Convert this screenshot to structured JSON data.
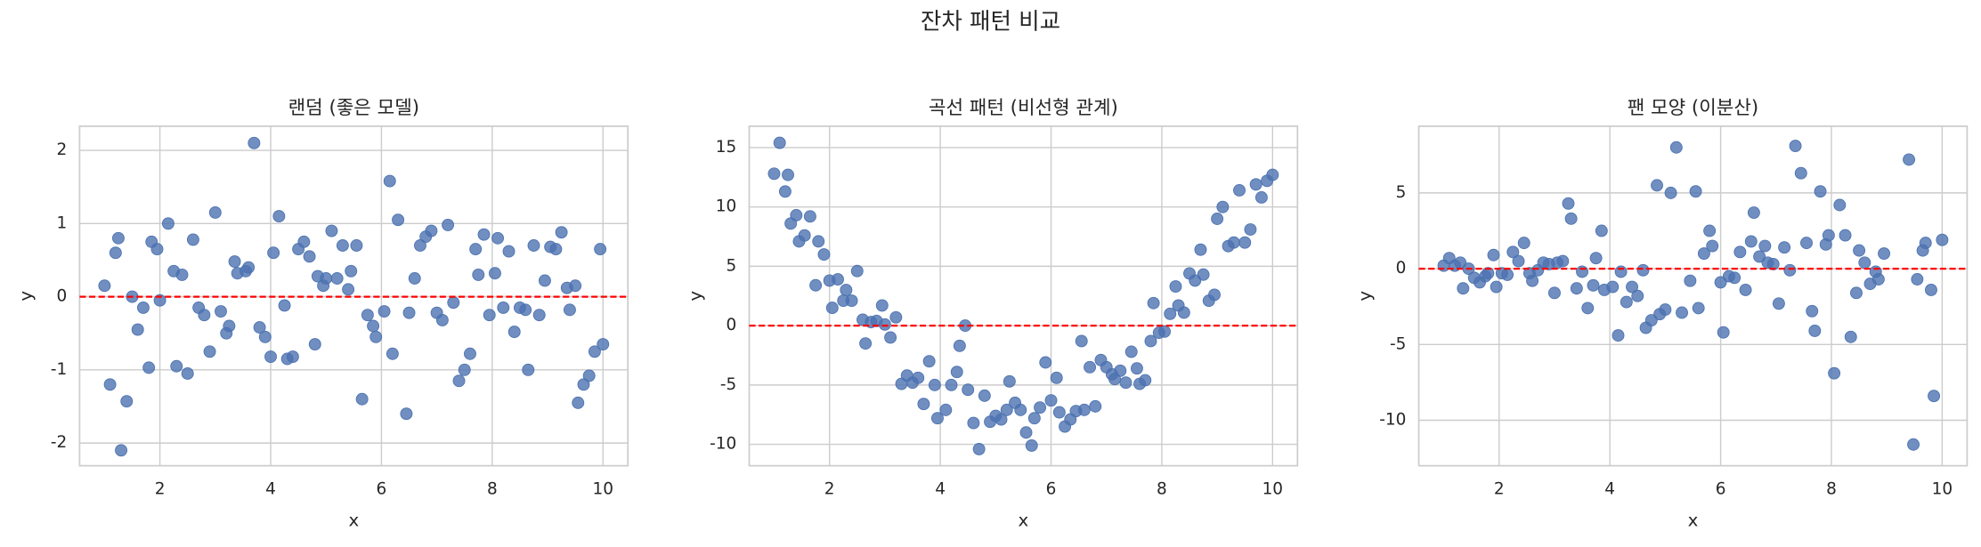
{
  "title": "잔차 패턴 비교",
  "chart_data": [
    {
      "type": "scatter",
      "title": "랜덤 (좋은 모델)",
      "xlabel": "x",
      "ylabel": "y",
      "color": "#4c72b0",
      "hline": 0,
      "hline_color": "red",
      "grid": true,
      "xlim": [
        0.55,
        10.45
      ],
      "ylim": [
        -2.31,
        2.33
      ],
      "xticks": [
        2,
        4,
        6,
        8,
        10
      ],
      "yticks": [
        -2,
        -1,
        0,
        1,
        2
      ],
      "x": [
        1.0,
        1.1,
        1.2,
        1.25,
        1.3,
        1.4,
        1.5,
        1.6,
        1.7,
        1.8,
        1.85,
        1.95,
        2.0,
        2.15,
        2.25,
        2.3,
        2.4,
        2.5,
        2.6,
        2.7,
        2.8,
        2.9,
        3.0,
        3.1,
        3.2,
        3.25,
        3.35,
        3.4,
        3.55,
        3.6,
        3.7,
        3.8,
        3.9,
        4.0,
        4.05,
        4.15,
        4.25,
        4.3,
        4.4,
        4.5,
        4.6,
        4.7,
        4.8,
        4.85,
        4.95,
        5.0,
        5.1,
        5.2,
        5.3,
        5.4,
        5.45,
        5.55,
        5.65,
        5.75,
        5.85,
        5.9,
        6.05,
        6.15,
        6.2,
        6.3,
        6.45,
        6.5,
        6.6,
        6.7,
        6.8,
        6.9,
        7.0,
        7.1,
        7.2,
        7.3,
        7.4,
        7.5,
        7.6,
        7.7,
        7.75,
        7.85,
        7.95,
        8.05,
        8.1,
        8.2,
        8.3,
        8.4,
        8.5,
        8.6,
        8.65,
        8.75,
        8.85,
        8.95,
        9.05,
        9.15,
        9.25,
        9.35,
        9.4,
        9.5,
        9.55,
        9.65,
        9.75,
        9.85,
        9.95,
        10.0
      ],
      "y": [
        0.15,
        -1.2,
        0.6,
        0.8,
        -2.1,
        -1.43,
        0,
        -0.45,
        -0.15,
        -0.97,
        0.75,
        0.65,
        -0.05,
        1.0,
        0.35,
        -0.95,
        0.3,
        -1.05,
        0.78,
        -0.15,
        -0.25,
        -0.75,
        1.15,
        -0.2,
        -0.5,
        -0.4,
        0.48,
        0.32,
        0.35,
        0.4,
        2.1,
        -0.42,
        -0.55,
        -0.82,
        0.6,
        1.1,
        -0.12,
        -0.85,
        -0.82,
        0.65,
        0.75,
        0.55,
        -0.65,
        0.28,
        0.15,
        0.25,
        0.9,
        0.25,
        0.7,
        0.1,
        0.35,
        0.7,
        -1.4,
        -0.25,
        -0.4,
        -0.55,
        -0.2,
        1.58,
        -0.78,
        1.05,
        -1.6,
        -0.22,
        0.25,
        0.7,
        0.82,
        0.9,
        -0.22,
        -0.32,
        0.98,
        -0.08,
        -1.15,
        -1.0,
        -0.78,
        0.65,
        0.3,
        0.85,
        -0.25,
        0.32,
        0.8,
        -0.15,
        0.62,
        -0.48,
        -0.15,
        -0.18,
        -1.0,
        0.7,
        -0.25,
        0.22,
        0.68,
        0.65,
        0.88,
        0.12,
        -0.18,
        0.15,
        -1.45,
        -1.2,
        -1.08,
        -0.75,
        0.65,
        -0.65
      ]
    },
    {
      "type": "scatter",
      "title": "곡선 패턴 (비선형 관계)",
      "xlabel": "x",
      "ylabel": "y",
      "color": "#4c72b0",
      "hline": 0,
      "hline_color": "red",
      "grid": true,
      "xlim": [
        0.55,
        10.45
      ],
      "ylim": [
        -11.8,
        16.8
      ],
      "xticks": [
        2,
        4,
        6,
        8,
        10
      ],
      "yticks": [
        -10,
        -5,
        0,
        5,
        10,
        15
      ],
      "x": [
        1.0,
        1.1,
        1.2,
        1.25,
        1.3,
        1.4,
        1.45,
        1.55,
        1.65,
        1.75,
        1.8,
        1.9,
        2.0,
        2.05,
        2.15,
        2.25,
        2.3,
        2.4,
        2.5,
        2.6,
        2.65,
        2.75,
        2.85,
        2.95,
        3.0,
        3.1,
        3.2,
        3.3,
        3.4,
        3.5,
        3.6,
        3.7,
        3.8,
        3.9,
        3.95,
        4.1,
        4.2,
        4.3,
        4.35,
        4.45,
        4.5,
        4.6,
        4.7,
        4.8,
        4.9,
        5.0,
        5.1,
        5.2,
        5.25,
        5.35,
        5.45,
        5.55,
        5.65,
        5.7,
        5.8,
        5.9,
        6.0,
        6.1,
        6.15,
        6.25,
        6.35,
        6.45,
        6.55,
        6.6,
        6.7,
        6.8,
        6.9,
        7.0,
        7.1,
        7.15,
        7.25,
        7.35,
        7.45,
        7.55,
        7.6,
        7.7,
        7.8,
        7.85,
        7.95,
        8.05,
        8.15,
        8.25,
        8.3,
        8.4,
        8.5,
        8.6,
        8.7,
        8.75,
        8.85,
        8.95,
        9.0,
        9.1,
        9.2,
        9.3,
        9.4,
        9.5,
        9.6,
        9.7,
        9.8,
        9.9,
        10.0
      ],
      "y": [
        12.8,
        15.4,
        11.3,
        12.7,
        8.6,
        9.3,
        7.1,
        7.6,
        9.2,
        3.4,
        7.1,
        6.0,
        3.8,
        1.5,
        3.9,
        2.1,
        3.0,
        2.1,
        4.6,
        0.5,
        -1.5,
        0.3,
        0.4,
        1.7,
        0.1,
        -1.0,
        0.7,
        -4.9,
        -4.2,
        -4.8,
        -4.4,
        -6.6,
        -3.0,
        -5.0,
        -7.8,
        -7.1,
        -5.0,
        -3.9,
        -1.7,
        0.0,
        -5.4,
        -8.2,
        -10.4,
        -5.9,
        -8.1,
        -7.6,
        -7.9,
        -7.1,
        -4.7,
        -6.5,
        -7.1,
        -9.0,
        -10.1,
        -7.8,
        -6.9,
        -3.1,
        -6.3,
        -4.4,
        -7.3,
        -8.5,
        -7.9,
        -7.2,
        -1.3,
        -7.1,
        -3.5,
        -6.8,
        -2.9,
        -3.5,
        -4.1,
        -4.5,
        -3.8,
        -4.8,
        -2.2,
        -3.6,
        -4.9,
        -4.6,
        -1.3,
        1.9,
        -0.6,
        -0.5,
        1.0,
        3.3,
        1.7,
        1.1,
        4.4,
        3.8,
        6.4,
        4.3,
        2.1,
        2.6,
        9.0,
        10.0,
        6.7,
        7.0,
        11.4,
        7.0,
        8.1,
        11.9,
        10.8,
        12.2,
        12.7
      ]
    },
    {
      "type": "scatter",
      "title": "팬 모양 (이분산)",
      "xlabel": "x",
      "ylabel": "y",
      "color": "#4c72b0",
      "hline": 0,
      "hline_color": "red",
      "grid": true,
      "xlim": [
        0.55,
        10.45
      ],
      "ylim": [
        -13.0,
        9.4
      ],
      "xticks": [
        2,
        4,
        6,
        8,
        10
      ],
      "yticks": [
        -10,
        -5,
        0,
        5
      ],
      "x": [
        1.0,
        1.1,
        1.2,
        1.3,
        1.35,
        1.45,
        1.55,
        1.65,
        1.75,
        1.8,
        1.9,
        1.95,
        2.05,
        2.15,
        2.25,
        2.35,
        2.45,
        2.55,
        2.6,
        2.7,
        2.8,
        2.9,
        3.0,
        3.05,
        3.15,
        3.25,
        3.3,
        3.4,
        3.5,
        3.6,
        3.7,
        3.75,
        3.85,
        3.9,
        4.05,
        4.15,
        4.2,
        4.3,
        4.4,
        4.5,
        4.6,
        4.65,
        4.75,
        4.85,
        4.9,
        5.0,
        5.1,
        5.2,
        5.3,
        5.45,
        5.55,
        5.6,
        5.7,
        5.8,
        5.85,
        6.0,
        6.05,
        6.15,
        6.25,
        6.35,
        6.45,
        6.55,
        6.6,
        6.7,
        6.8,
        6.85,
        6.95,
        7.05,
        7.15,
        7.25,
        7.35,
        7.45,
        7.55,
        7.65,
        7.7,
        7.8,
        7.9,
        7.95,
        8.05,
        8.15,
        8.25,
        8.35,
        8.45,
        8.5,
        8.6,
        8.7,
        8.8,
        8.85,
        8.95,
        9.4,
        9.48,
        9.55,
        9.65,
        9.7,
        9.8,
        9.85,
        10.0
      ],
      "y": [
        0.2,
        0.7,
        0.2,
        0.4,
        -1.3,
        0.0,
        -0.6,
        -0.9,
        -0.5,
        -0.3,
        0.9,
        -1.2,
        -0.3,
        -0.4,
        1.1,
        0.5,
        1.7,
        -0.3,
        -0.8,
        -0.1,
        0.4,
        0.3,
        -1.6,
        0.4,
        0.5,
        4.3,
        3.3,
        -1.3,
        -0.2,
        -2.6,
        -1.1,
        0.7,
        2.5,
        -1.4,
        -1.2,
        -4.4,
        -0.2,
        -2.2,
        -1.2,
        -1.8,
        -0.1,
        -3.9,
        -3.4,
        5.5,
        -3.0,
        -2.7,
        5.0,
        8.0,
        -2.9,
        -0.8,
        5.1,
        -2.6,
        1.0,
        2.5,
        1.5,
        -0.9,
        -4.2,
        -0.5,
        -0.6,
        1.1,
        -1.4,
        1.8,
        3.7,
        0.8,
        1.5,
        0.4,
        0.3,
        -2.3,
        1.4,
        -0.1,
        8.1,
        6.3,
        1.7,
        -2.8,
        -4.1,
        5.1,
        1.6,
        2.2,
        -6.9,
        4.2,
        2.2,
        -4.5,
        -1.6,
        1.2,
        0.4,
        -1.0,
        -0.2,
        -0.7,
        1.0,
        7.2,
        -11.6,
        -0.7,
        1.2,
        1.7,
        -1.4,
        -8.4,
        1.9
      ]
    }
  ]
}
